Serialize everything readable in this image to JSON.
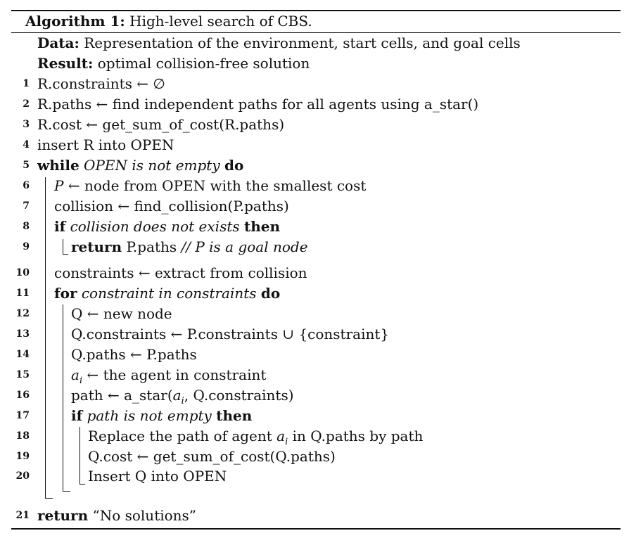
{
  "caption": {
    "label": "Algorithm 1:",
    "title": "High-level search of CBS."
  },
  "header": {
    "data_label": "Data:",
    "data_text": "Representation of the environment, start cells, and goal cells",
    "result_label": "Result:",
    "result_text": "optimal collision-free solution"
  },
  "lines": [
    {
      "no": "1",
      "indent": 0,
      "parts": [
        {
          "t": "R.constraints ← ∅"
        }
      ]
    },
    {
      "no": "2",
      "indent": 0,
      "parts": [
        {
          "t": "R.paths ← find independent paths for all agents using a_star()"
        }
      ]
    },
    {
      "no": "3",
      "indent": 0,
      "parts": [
        {
          "t": "R.cost ← get_sum_of_cost(R.paths)"
        }
      ]
    },
    {
      "no": "4",
      "indent": 0,
      "parts": [
        {
          "t": "insert R into OPEN"
        }
      ]
    },
    {
      "no": "5",
      "indent": 0,
      "parts": [
        {
          "t": "while",
          "s": "kw"
        },
        {
          "t": " "
        },
        {
          "t": "OPEN is not empty",
          "s": "it"
        },
        {
          "t": " "
        },
        {
          "t": "do",
          "s": "kw"
        }
      ]
    },
    {
      "no": "6",
      "indent": 1,
      "parts": [
        {
          "t": "P",
          "s": "it"
        },
        {
          "t": " ← node from OPEN with the smallest cost"
        }
      ]
    },
    {
      "no": "7",
      "indent": 1,
      "parts": [
        {
          "t": "collision ← find_collision(P.paths)"
        }
      ]
    },
    {
      "no": "8",
      "indent": 1,
      "parts": [
        {
          "t": "if",
          "s": "kw"
        },
        {
          "t": " "
        },
        {
          "t": "collision does not exists",
          "s": "it"
        },
        {
          "t": " "
        },
        {
          "t": "then",
          "s": "kw"
        }
      ]
    },
    {
      "no": "9",
      "indent": 2,
      "parts": [
        {
          "t": "return",
          "s": "kw"
        },
        {
          "t": " P.paths "
        },
        {
          "t": "// P is a goal node",
          "s": "it"
        }
      ]
    },
    {
      "no": "10",
      "indent": 1,
      "parts": [
        {
          "t": "constraints ← extract from collision"
        }
      ]
    },
    {
      "no": "11",
      "indent": 1,
      "parts": [
        {
          "t": "for",
          "s": "kw"
        },
        {
          "t": " "
        },
        {
          "t": "constraint in constraints",
          "s": "it"
        },
        {
          "t": " "
        },
        {
          "t": "do",
          "s": "kw"
        }
      ]
    },
    {
      "no": "12",
      "indent": 2,
      "parts": [
        {
          "t": "Q ← new node"
        }
      ]
    },
    {
      "no": "13",
      "indent": 2,
      "parts": [
        {
          "t": "Q.constraints ← P.constraints ∪ {constraint}"
        }
      ]
    },
    {
      "no": "14",
      "indent": 2,
      "parts": [
        {
          "t": "Q.paths ← P.paths"
        }
      ]
    },
    {
      "no": "15",
      "indent": 2,
      "parts": [
        {
          "t": "a",
          "s": "it"
        },
        {
          "t": "i",
          "s": "sub"
        },
        {
          "t": " ← the agent in constraint"
        }
      ]
    },
    {
      "no": "16",
      "indent": 2,
      "parts": [
        {
          "t": "path ← a_star("
        },
        {
          "t": "a",
          "s": "it"
        },
        {
          "t": "i",
          "s": "sub"
        },
        {
          "t": ", Q.constraints)"
        }
      ]
    },
    {
      "no": "17",
      "indent": 2,
      "parts": [
        {
          "t": "if",
          "s": "kw"
        },
        {
          "t": " "
        },
        {
          "t": "path is not empty",
          "s": "it"
        },
        {
          "t": " "
        },
        {
          "t": "then",
          "s": "kw"
        }
      ]
    },
    {
      "no": "18",
      "indent": 3,
      "parts": [
        {
          "t": "Replace the path of agent "
        },
        {
          "t": "a",
          "s": "it"
        },
        {
          "t": "i",
          "s": "sub"
        },
        {
          "t": " in Q.paths by path"
        }
      ]
    },
    {
      "no": "19",
      "indent": 3,
      "parts": [
        {
          "t": "Q.cost ← get_sum_of_cost(Q.paths)"
        }
      ]
    },
    {
      "no": "20",
      "indent": 3,
      "parts": [
        {
          "t": "Insert Q into OPEN"
        }
      ]
    },
    {
      "no": "21",
      "indent": 0,
      "parts": [
        {
          "t": "return",
          "s": "kw"
        },
        {
          "t": " “No solutions”"
        }
      ]
    }
  ]
}
